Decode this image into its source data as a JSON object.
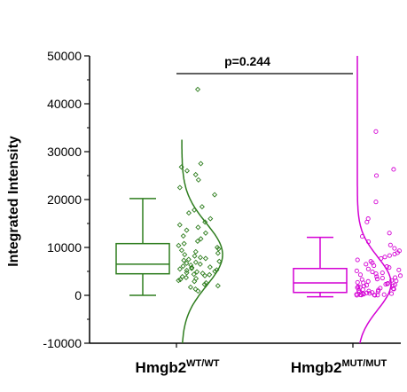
{
  "chart_data": {
    "type": "box",
    "ylabel": "Integrated Intensity",
    "ylim": [
      -10000,
      50000
    ],
    "yticks": [
      -10000,
      0,
      10000,
      20000,
      30000,
      40000,
      50000
    ],
    "ytick_labels": [
      "-10000",
      "0",
      "10000",
      "20000",
      "30000",
      "40000",
      "50000"
    ],
    "annotation": "p=0.244",
    "groups": [
      {
        "base": "Hmgb2",
        "superscript": "WT/WT",
        "color": "#2e7d1e",
        "marker": "diamond",
        "box": {
          "whisker_low": 0,
          "q1": 4500,
          "median": 6500,
          "q3": 10800,
          "whisker_high": 20200
        },
        "points": [
          43000,
          27500,
          26800,
          26000,
          25200,
          24100,
          22500,
          21000,
          18500,
          17800,
          17200,
          16000,
          15300,
          14700,
          14200,
          13600,
          13000,
          12400,
          11800,
          11300,
          10800,
          10400,
          10000,
          9700,
          9400,
          9100,
          8800,
          8500,
          8200,
          7900,
          7700,
          7500,
          7300,
          7100,
          6900,
          6700,
          6500,
          6300,
          6100,
          5900,
          5800,
          5600,
          5500,
          5300,
          5200,
          5000,
          4900,
          4700,
          4600,
          4400,
          4300,
          4100,
          3900,
          3700,
          3500,
          3300,
          3100,
          2900,
          2600,
          2300,
          2000,
          1700,
          1300,
          900
        ],
        "density": {
          "mean": 8500,
          "sd": 6500,
          "ymin": -10000,
          "ymax": 32500
        }
      },
      {
        "base": "Hmgb2",
        "superscript": "MUT/MUT",
        "color": "#d400d4",
        "marker": "circle",
        "box": {
          "whisker_low": -300,
          "q1": 600,
          "median": 2600,
          "q3": 5600,
          "whisker_high": 12100
        },
        "points": [
          34200,
          26300,
          25000,
          19500,
          16000,
          15300,
          13000,
          12300,
          11200,
          10500,
          9800,
          9300,
          8900,
          8600,
          8300,
          8000,
          7700,
          7400,
          7100,
          6800,
          6500,
          6200,
          6000,
          5800,
          5500,
          5300,
          5100,
          4900,
          4700,
          4500,
          4300,
          4100,
          3900,
          3700,
          3600,
          3400,
          3300,
          3100,
          3000,
          2900,
          2700,
          2600,
          2500,
          2400,
          2300,
          2200,
          2100,
          2000,
          1900,
          1800,
          1700,
          1600,
          1500,
          1400,
          1300,
          1200,
          1100,
          1000,
          900,
          800,
          700,
          600,
          500,
          400,
          350,
          300,
          250,
          200,
          150,
          100,
          80,
          60,
          40,
          20,
          10
        ],
        "density": {
          "mean": 2500,
          "sd": 5500,
          "ymin": -10000,
          "ymax": 50000
        }
      }
    ]
  }
}
